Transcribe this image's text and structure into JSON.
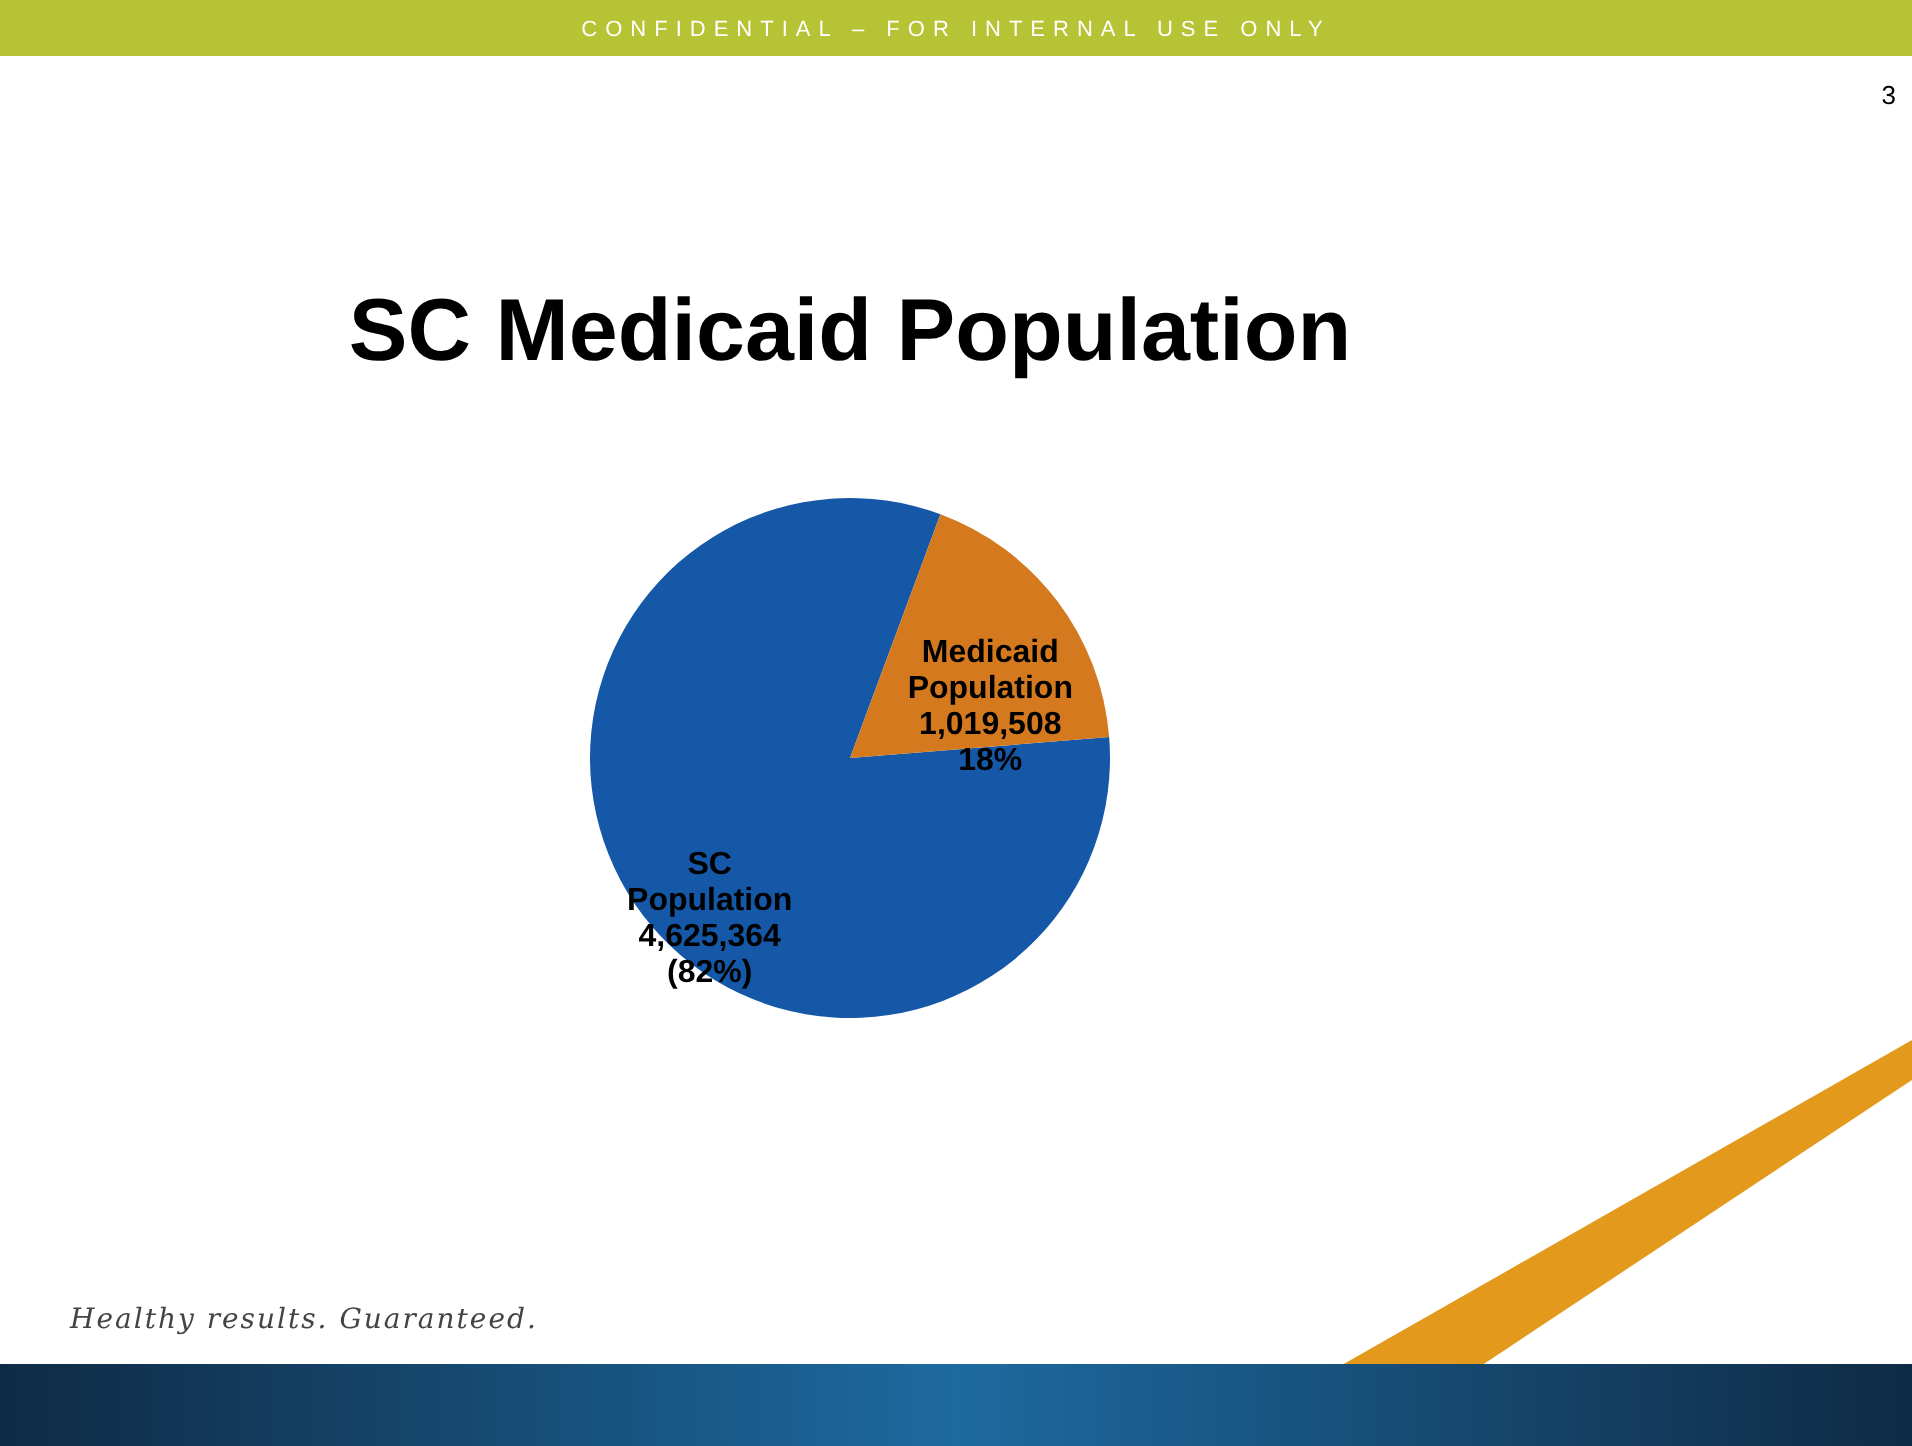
{
  "chart_data": {
    "type": "pie",
    "title": "SC Medicaid Population",
    "categories": [
      "SC Population",
      "Medicaid Population"
    ],
    "values": [
      4625364,
      1019508
    ],
    "colors": [
      "#1558a8",
      "#d4791e"
    ],
    "value_labels": [
      "4,625,364\n(82%)",
      "1,019,508\n18%"
    ],
    "legend": false,
    "annotations": [
      "CONFIDENTIAL – FOR INTERNAL USE ONLY",
      "3",
      "Healthy results. Guaranteed."
    ]
  }
}
